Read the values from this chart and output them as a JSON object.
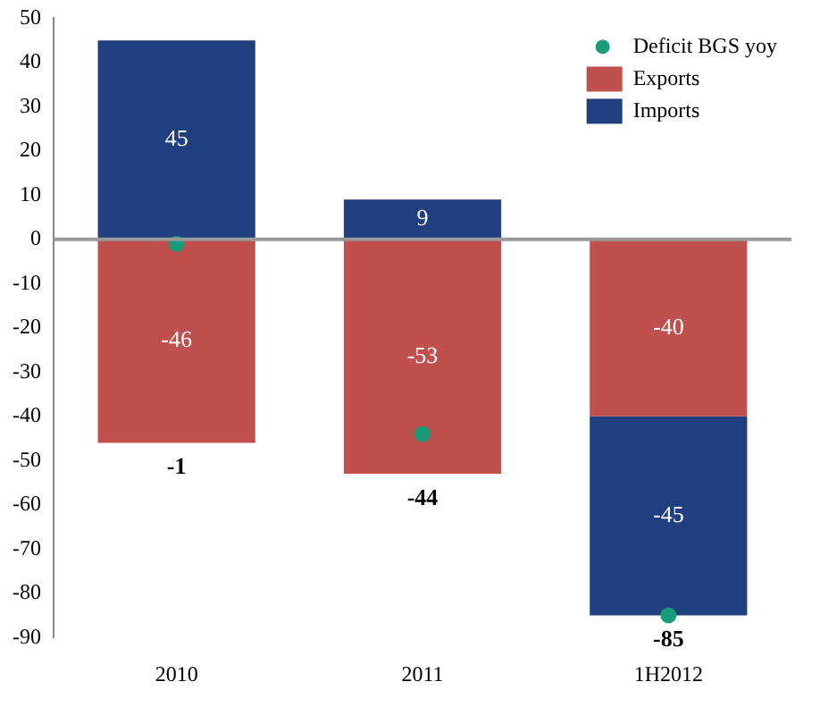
{
  "chart_data": {
    "type": "bar",
    "stacked": true,
    "categories": [
      "2010",
      "2011",
      "1H2012"
    ],
    "series": [
      {
        "name": "Exports",
        "color": "#c0504d",
        "values": [
          -46,
          -53,
          -40
        ],
        "value_labels": [
          "-46",
          "-53",
          "-40"
        ]
      },
      {
        "name": "Imports",
        "color": "#1f3f7f",
        "values": [
          45,
          9,
          -45
        ],
        "value_labels": [
          "45",
          "9",
          "-45"
        ]
      },
      {
        "name": "Deficit BGS yoy",
        "type": "scatter",
        "color": "#1a9c7a",
        "values": [
          -1,
          -44,
          -85
        ],
        "marker": "circle"
      }
    ],
    "totals": [
      "-1",
      "-44",
      "-85"
    ],
    "ylim": [
      -90,
      50
    ],
    "yticks": [
      -90,
      -80,
      -70,
      -60,
      -50,
      -40,
      -30,
      -20,
      -10,
      0,
      10,
      20,
      30,
      40,
      50
    ],
    "grid": false,
    "legend": "top right",
    "ref_lines": [
      {
        "axis": "y",
        "value": 0,
        "color": "#999999"
      }
    ]
  }
}
